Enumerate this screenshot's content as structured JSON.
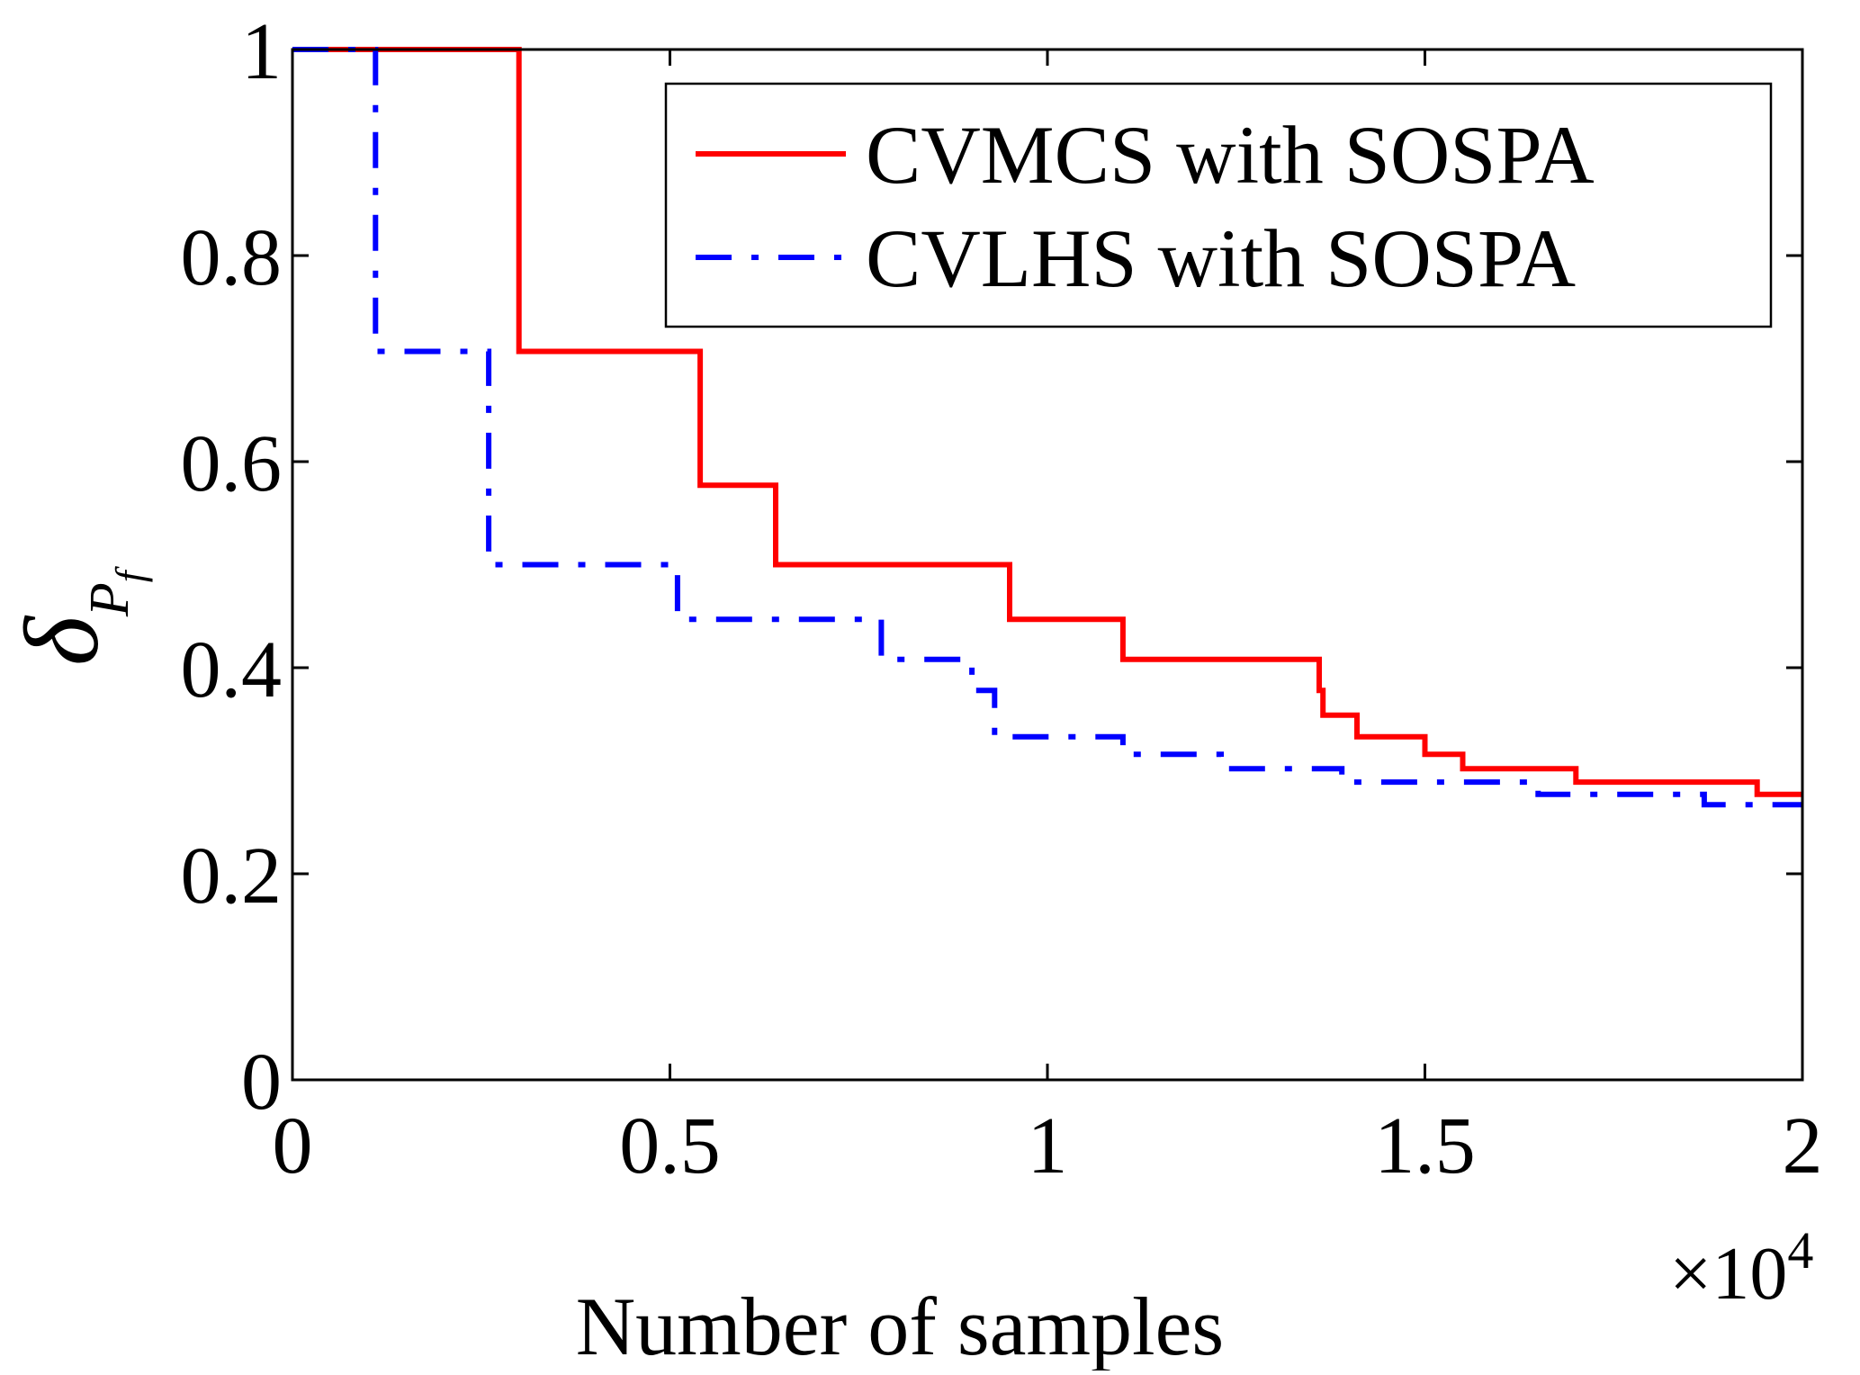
{
  "chart_data": {
    "type": "line",
    "title": "",
    "xlabel": "Number of samples",
    "x_multiplier": {
      "base": "×10",
      "exponent": "4"
    },
    "ylabel": {
      "symbol": "δ",
      "sub": "P",
      "subsub": "f"
    },
    "xlim": [
      0,
      20000
    ],
    "ylim": [
      0,
      1
    ],
    "x_ticks": [
      0,
      5000,
      10000,
      15000,
      20000
    ],
    "x_tick_labels": [
      "0",
      "0.5",
      "1",
      "1.5",
      "2"
    ],
    "y_ticks": [
      0,
      0.2,
      0.4,
      0.6,
      0.8,
      1
    ],
    "y_tick_labels": [
      "0",
      "0.2",
      "0.4",
      "0.6",
      "0.8",
      "1"
    ],
    "grid": false,
    "legend_position": "top-right",
    "series": [
      {
        "name": "CVMCS with SOSPA",
        "color": "#ff0000",
        "style": "solid",
        "step": true,
        "x": [
          0,
          3000,
          5400,
          6400,
          9500,
          11000,
          13600,
          13650,
          13700,
          14100,
          15000,
          15500,
          17000,
          19400,
          20000
        ],
        "y": [
          1.0,
          0.707,
          0.577,
          0.5,
          0.447,
          0.408,
          0.378,
          0.354,
          0.354,
          0.333,
          0.316,
          0.302,
          0.289,
          0.277,
          0.277
        ]
      },
      {
        "name": "CVLHS with SOSPA",
        "color": "#0000ff",
        "style": "dashdot",
        "step": true,
        "x": [
          0,
          1100,
          2600,
          5100,
          7800,
          9000,
          9300,
          11000,
          12300,
          13900,
          16500,
          18700,
          20000
        ],
        "y": [
          1.0,
          0.707,
          0.5,
          0.447,
          0.408,
          0.378,
          0.333,
          0.316,
          0.302,
          0.289,
          0.277,
          0.267,
          0.267
        ]
      }
    ]
  }
}
